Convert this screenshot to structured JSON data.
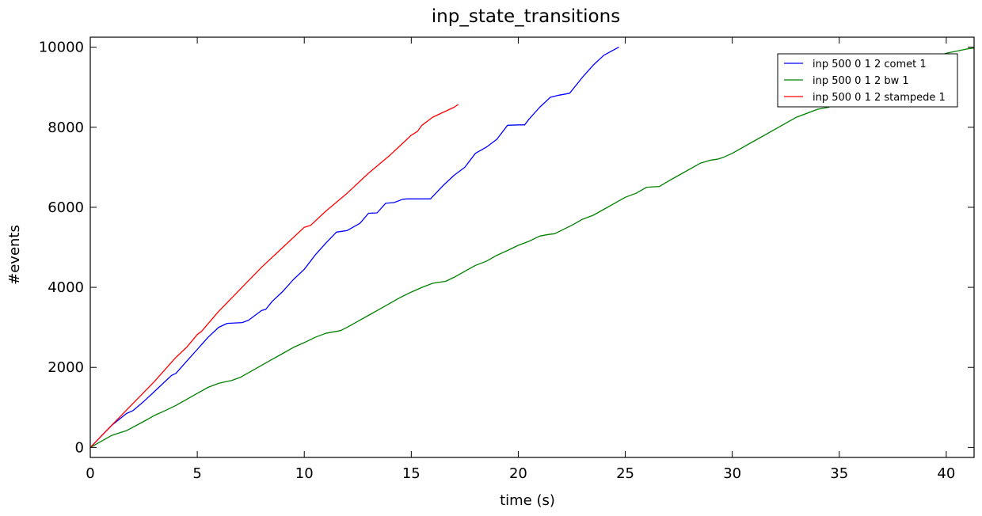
{
  "chart_data": {
    "type": "line",
    "title": "inp_state_transitions",
    "xlabel": "time (s)",
    "ylabel": "#events",
    "xlim": [
      0,
      41.3
    ],
    "ylim": [
      -250,
      10250
    ],
    "xticks": [
      0,
      5,
      10,
      15,
      20,
      25,
      30,
      35,
      40
    ],
    "yticks": [
      0,
      2000,
      4000,
      6000,
      8000,
      10000
    ],
    "grid": false,
    "legend_position": "top-right",
    "series": [
      {
        "name": "inp 500 0 1 2 comet 1",
        "color": "#0000ff",
        "x": [
          0,
          1,
          1.7,
          2,
          2.5,
          3,
          3.5,
          3.8,
          4,
          4.5,
          5,
          5.5,
          6,
          6.4,
          7.1,
          7.4,
          8,
          8.2,
          8.5,
          9,
          9.5,
          10,
          10.5,
          11,
          11.5,
          12,
          12.6,
          13,
          13.4,
          13.8,
          14.2,
          14.6,
          14.8,
          15.9,
          16.5,
          17,
          17.5,
          18,
          18.5,
          19,
          19.5,
          20,
          20.3,
          20.5,
          21,
          21.5,
          21.9,
          22.4,
          23,
          23.5,
          24,
          24.7
        ],
        "y": [
          0,
          550,
          850,
          920,
          1150,
          1400,
          1650,
          1800,
          1850,
          2150,
          2450,
          2750,
          3000,
          3100,
          3120,
          3180,
          3420,
          3450,
          3650,
          3900,
          4200,
          4450,
          4800,
          5100,
          5380,
          5420,
          5600,
          5850,
          5860,
          6100,
          6120,
          6200,
          6210,
          6210,
          6550,
          6800,
          7000,
          7350,
          7500,
          7700,
          8050,
          8060,
          8060,
          8200,
          8500,
          8750,
          8800,
          8850,
          9250,
          9550,
          9800,
          10000
        ]
      },
      {
        "name": "inp 500 0 1 2 bw 1",
        "color": "#008000",
        "x": [
          0,
          1,
          1.4,
          1.7,
          2.5,
          3,
          3.5,
          4,
          4.5,
          5,
          5.5,
          6,
          6.4,
          6.6,
          7,
          7.5,
          8,
          8.5,
          9,
          9.5,
          10,
          10.5,
          11,
          11.5,
          11.7,
          12,
          12.5,
          13,
          13.5,
          14,
          14.5,
          15,
          15.5,
          16,
          16.2,
          16.6,
          17,
          17.5,
          18,
          18.5,
          19,
          19.5,
          20,
          20.5,
          21,
          21.4,
          21.7,
          22,
          22.5,
          23,
          23.5,
          24,
          24.5,
          25,
          25.5,
          26,
          26.3,
          26.6,
          27,
          27.5,
          28,
          28.5,
          29,
          29.3,
          29.6,
          30,
          31,
          32,
          33,
          34,
          34.3,
          34.5,
          35,
          35.5,
          36,
          37,
          38,
          39,
          40,
          41,
          41.3
        ],
        "y": [
          0,
          300,
          370,
          420,
          650,
          800,
          920,
          1050,
          1200,
          1350,
          1500,
          1600,
          1650,
          1670,
          1750,
          1900,
          2050,
          2200,
          2350,
          2500,
          2620,
          2750,
          2850,
          2900,
          2920,
          3000,
          3150,
          3300,
          3450,
          3600,
          3750,
          3880,
          4000,
          4100,
          4120,
          4150,
          4250,
          4400,
          4550,
          4650,
          4800,
          4920,
          5050,
          5150,
          5280,
          5320,
          5340,
          5420,
          5550,
          5700,
          5800,
          5950,
          6100,
          6250,
          6350,
          6500,
          6510,
          6520,
          6650,
          6800,
          6950,
          7100,
          7180,
          7200,
          7250,
          7350,
          7650,
          7950,
          8250,
          8450,
          8480,
          8500,
          8650,
          8800,
          8950,
          9250,
          9450,
          9650,
          9850,
          9960,
          9980
        ]
      },
      {
        "name": "inp 500 0 1 2 stampede 1",
        "color": "#ff0000",
        "x": [
          0,
          1,
          2,
          3,
          4,
          4.5,
          5,
          5.2,
          6,
          7,
          8,
          9,
          10,
          10.3,
          11,
          12,
          13,
          14,
          15,
          15.3,
          15.5,
          16,
          17,
          17.2
        ],
        "y": [
          0,
          550,
          1100,
          1650,
          2250,
          2500,
          2820,
          2900,
          3400,
          3950,
          4500,
          5000,
          5500,
          5550,
          5900,
          6350,
          6850,
          7300,
          7800,
          7900,
          8050,
          8250,
          8500,
          8570
        ]
      }
    ]
  }
}
